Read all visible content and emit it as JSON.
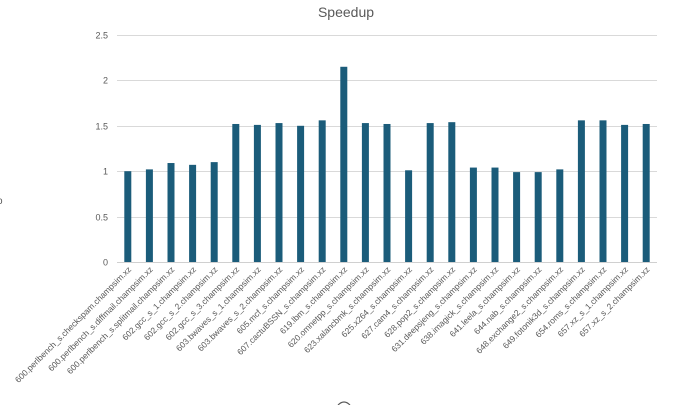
{
  "chart_data": {
    "type": "bar",
    "title": "Speedup",
    "xlabel": "",
    "ylabel": "",
    "ylim": [
      0,
      2.5
    ],
    "yticks": [
      "0",
      "0.5",
      "1",
      "1.5",
      "2",
      "2.5"
    ],
    "grid": true,
    "legend": "none",
    "bar_color": "#1b5c7a",
    "categories": [
      "600.perlbench_s.checkspam.champsim.xz",
      "600.perlbench_s.diffmail.champsim.xz",
      "600.perlbench_s.splitmail.champsim.xz",
      "602.gcc_s_1.champsim.xz",
      "602.gcc_s_2.champsim.xz",
      "602.gcc_s_3.champsim.xz",
      "603.bwaves_s_1.champsim.xz",
      "603.bwaves_s_2.champsim.xz",
      "605.mcf_s.champsim.xz",
      "607.cactuBSSN_s.champsim.xz",
      "619.lbm_s.champsim.xz",
      "620.omnetpp_s.champsim.xz",
      "623.xalancbmk_s.champsim.xz",
      "625.x264_s.champsim.xz",
      "627.cam4_s.champsim.xz",
      "628.pop2_s.champsim.xz",
      "631.deepsjeng_s.champsim.xz",
      "638.imagick_s.champsim.xz",
      "641.leela_s.champsim.xz",
      "644.nab_s.champsim.xz",
      "648.exchange2_s.champsim.xz",
      "649.fotonik3d_s.champsim.xz",
      "654.roms_s.champsim.xz",
      "657.xz_s_1.champsim.xz",
      "657.xz_s_2.champsim.xz"
    ],
    "values": [
      1.0,
      1.02,
      1.09,
      1.07,
      1.1,
      1.52,
      1.51,
      1.53,
      1.5,
      1.56,
      2.15,
      1.53,
      1.52,
      1.01,
      1.53,
      1.54,
      1.04,
      1.04,
      0.99,
      0.99,
      1.02,
      1.56,
      1.56,
      1.51,
      1.52
    ]
  }
}
